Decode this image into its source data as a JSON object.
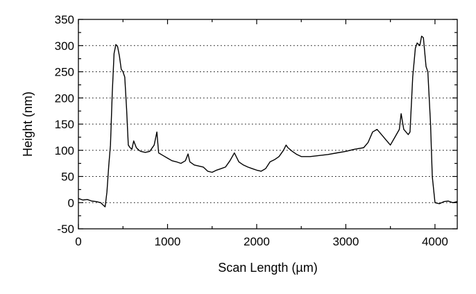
{
  "chart_data": {
    "type": "line",
    "title": "",
    "xlabel": "Scan Length (µm)",
    "ylabel": "Height (nm)",
    "xlim": [
      0,
      4250
    ],
    "ylim": [
      -50,
      350
    ],
    "x_ticks": [
      0,
      1000,
      2000,
      3000,
      4000
    ],
    "y_ticks": [
      -50,
      0,
      50,
      100,
      150,
      200,
      250,
      300,
      350
    ],
    "x_tick_labels": [
      "0",
      "1000",
      "2000",
      "3000",
      "4000"
    ],
    "y_tick_labels": [
      "-50",
      "0",
      "50",
      "100",
      "150",
      "200",
      "250",
      "300",
      "350"
    ],
    "grid": "horizontal-dotted",
    "legend": "none",
    "series": [
      {
        "color": "#000000",
        "x": [
          0,
          50,
          100,
          150,
          200,
          250,
          280,
          300,
          320,
          340,
          360,
          380,
          400,
          420,
          440,
          460,
          480,
          500,
          520,
          540,
          560,
          580,
          600,
          620,
          650,
          680,
          700,
          750,
          800,
          850,
          880,
          900,
          950,
          1000,
          1050,
          1100,
          1150,
          1200,
          1230,
          1250,
          1300,
          1350,
          1400,
          1450,
          1500,
          1550,
          1600,
          1650,
          1700,
          1750,
          1800,
          1850,
          1900,
          1950,
          2000,
          2050,
          2100,
          2150,
          2200,
          2250,
          2300,
          2330,
          2350,
          2400,
          2450,
          2500,
          2600,
          2700,
          2800,
          2900,
          3000,
          3100,
          3200,
          3250,
          3300,
          3350,
          3400,
          3450,
          3500,
          3550,
          3600,
          3620,
          3650,
          3700,
          3720,
          3750,
          3780,
          3800,
          3830,
          3850,
          3870,
          3900,
          3920,
          3950,
          3970,
          4000,
          4050,
          4100,
          4150,
          4200,
          4250
        ],
        "y": [
          8,
          5,
          6,
          3,
          2,
          0,
          -5,
          -8,
          20,
          70,
          110,
          210,
          285,
          302,
          298,
          280,
          255,
          250,
          240,
          180,
          110,
          105,
          102,
          118,
          105,
          100,
          98,
          96,
          98,
          110,
          135,
          95,
          90,
          85,
          80,
          78,
          75,
          80,
          93,
          78,
          72,
          70,
          68,
          60,
          58,
          62,
          65,
          68,
          80,
          95,
          78,
          72,
          68,
          65,
          62,
          60,
          65,
          78,
          82,
          88,
          100,
          110,
          105,
          98,
          92,
          88,
          88,
          90,
          92,
          95,
          98,
          102,
          105,
          115,
          135,
          140,
          130,
          120,
          110,
          125,
          140,
          170,
          140,
          130,
          135,
          240,
          295,
          305,
          300,
          318,
          315,
          260,
          250,
          150,
          50,
          0,
          -2,
          2,
          3,
          0,
          2
        ]
      }
    ]
  }
}
